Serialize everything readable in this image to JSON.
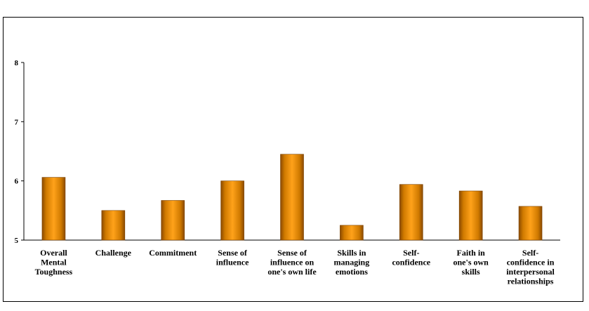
{
  "chart_data": {
    "type": "bar",
    "categories": [
      [
        "Overall",
        "Mental",
        "Toughness"
      ],
      [
        "Challenge"
      ],
      [
        "Commitment"
      ],
      [
        "Sense of",
        "influence"
      ],
      [
        "Sense of",
        "influence on",
        "one's own life"
      ],
      [
        "Skills in",
        "managing",
        "emotions"
      ],
      [
        "Self-",
        "confidence"
      ],
      [
        "Faith in",
        "one's own",
        "skills"
      ],
      [
        "Self-",
        "confidence in",
        "interpersonal",
        "relationships"
      ]
    ],
    "values": [
      6.06,
      5.5,
      5.67,
      6.0,
      6.45,
      5.25,
      5.94,
      5.83,
      5.57
    ],
    "ylim": [
      5,
      8
    ],
    "yticks": [
      "5",
      "6",
      "7",
      "8"
    ],
    "bar_color": "#f39c12",
    "grid": false,
    "title": "",
    "xlabel": "",
    "ylabel": ""
  }
}
